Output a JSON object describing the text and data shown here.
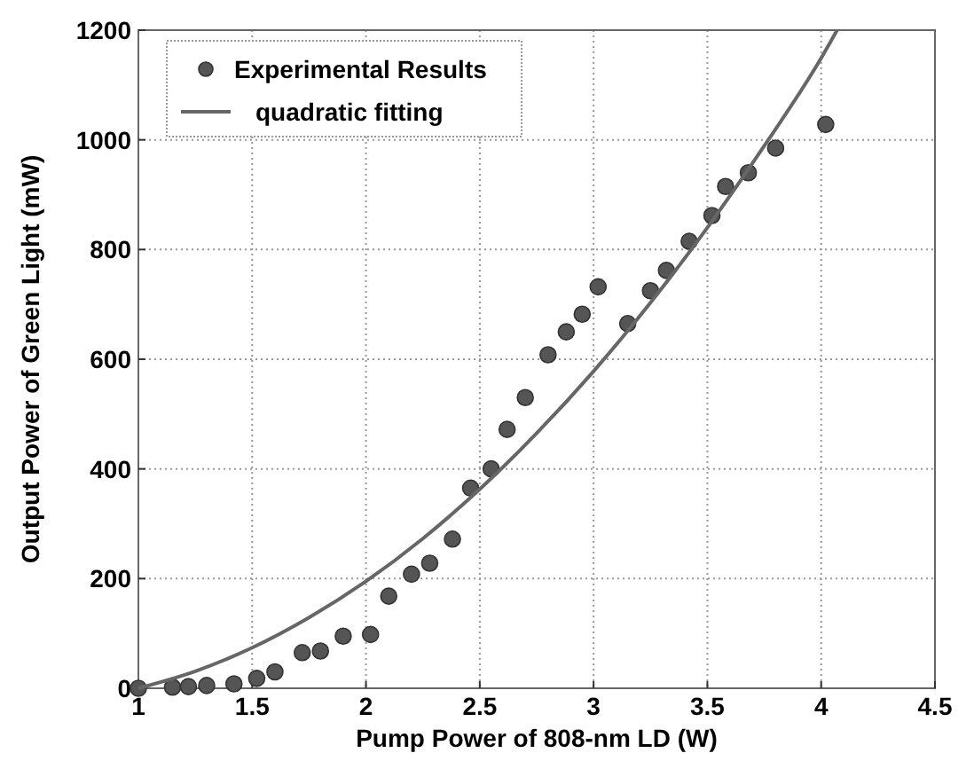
{
  "chart_data": {
    "type": "scatter",
    "xlabel": "Pump Power of 808-nm LD (W)",
    "ylabel": "Output Power of Green Light (mW)",
    "xlim": [
      1,
      4.5
    ],
    "ylim": [
      0,
      1200
    ],
    "xticks": [
      1,
      1.5,
      2,
      2.5,
      3,
      3.5,
      4,
      4.5
    ],
    "yticks": [
      0,
      200,
      400,
      600,
      800,
      1000,
      1200
    ],
    "grid": true,
    "legend": "top left",
    "series": [
      {
        "name": "Experimental Results",
        "marker": "circle",
        "color": "#555555",
        "x": [
          1.0,
          1.15,
          1.22,
          1.3,
          1.42,
          1.52,
          1.6,
          1.72,
          1.8,
          1.9,
          2.02,
          2.1,
          2.2,
          2.28,
          2.38,
          2.46,
          2.55,
          2.62,
          2.7,
          2.8,
          2.88,
          2.95,
          3.02,
          3.15,
          3.25,
          3.32,
          3.42,
          3.52,
          3.58,
          3.68,
          3.8,
          4.02
        ],
        "values": [
          0,
          2,
          3,
          5,
          8,
          18,
          30,
          65,
          68,
          95,
          98,
          168,
          208,
          228,
          272,
          365,
          400,
          472,
          530,
          608,
          650,
          682,
          732,
          665,
          725,
          762,
          815,
          862,
          915,
          940,
          985,
          1028
        ]
      },
      {
        "name": "quadratic fitting",
        "type": "line",
        "line_style": "solid",
        "color": "#666666",
        "x": [
          1,
          1.25,
          1.5,
          1.75,
          2,
          2.25,
          2.5,
          2.75,
          3,
          3.25,
          3.5,
          3.75,
          4,
          4.07
        ],
        "values": [
          0,
          31,
          74,
          129,
          195,
          273,
          363,
          465,
          578,
          703,
          840,
          989,
          1149,
          1200
        ]
      }
    ]
  }
}
